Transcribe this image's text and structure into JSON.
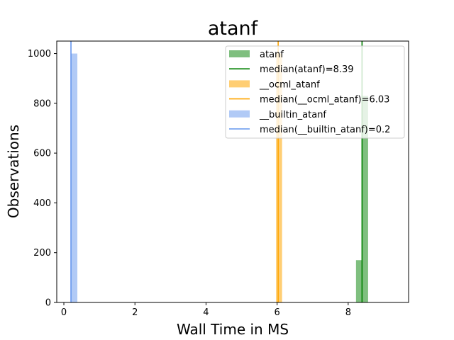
{
  "chart_data": {
    "type": "histogram",
    "title": "atanf",
    "xlabel": "Wall Time in MS",
    "ylabel": "Observations",
    "xlim": [
      -0.2,
      9.7
    ],
    "ylim": [
      0,
      1050
    ],
    "x_ticks": [
      0,
      2,
      4,
      6,
      8
    ],
    "y_ticks": [
      0,
      200,
      400,
      600,
      800,
      1000
    ],
    "grid": false,
    "legend_position": "top-right",
    "series": [
      {
        "name": "atanf",
        "color": "#008000",
        "opacity": 0.5,
        "bins": [
          {
            "x0": 8.22,
            "x1": 8.39,
            "count": 170
          },
          {
            "x0": 8.39,
            "x1": 8.56,
            "count": 830
          }
        ],
        "median": 8.39,
        "median_label": "median(atanf)=8.39"
      },
      {
        "name": "__ocml_atanf",
        "color": "#ffa500",
        "opacity": 0.55,
        "bins": [
          {
            "x0": 5.97,
            "x1": 6.14,
            "count": 1000
          }
        ],
        "median": 6.03,
        "median_label": "median(__ocml_atanf)=6.03"
      },
      {
        "name": "__builtin_atanf",
        "color": "#6495ed",
        "opacity": 0.5,
        "bins": [
          {
            "x0": 0.2,
            "x1": 0.38,
            "count": 1000
          }
        ],
        "median": 0.2,
        "median_label": "median(__builtin_atanf)=0.2"
      }
    ]
  }
}
